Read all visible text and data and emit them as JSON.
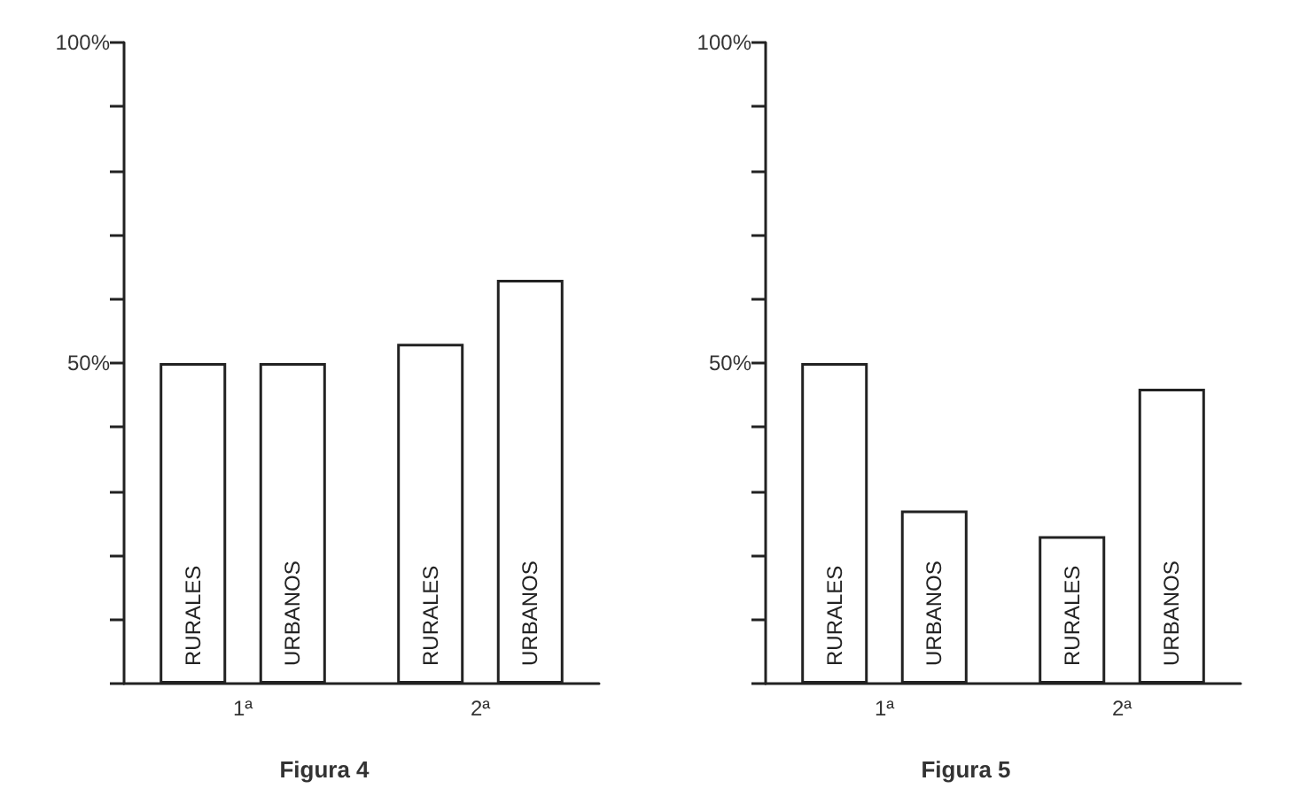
{
  "chart_data": [
    {
      "type": "bar",
      "title": "Figura 4",
      "categories": [
        "1ª",
        "2ª"
      ],
      "series": [
        {
          "name": "RURALES",
          "color": "#ffffff",
          "values": [
            50,
            53
          ]
        },
        {
          "name": "URBANOS",
          "color": "#ffffff",
          "values": [
            50,
            63
          ]
        }
      ],
      "ylim": [
        0,
        100
      ],
      "yticks": [
        {
          "value": 0,
          "label": null
        },
        {
          "value": 10,
          "label": null
        },
        {
          "value": 20,
          "label": null
        },
        {
          "value": 30,
          "label": null
        },
        {
          "value": 40,
          "label": null
        },
        {
          "value": 50,
          "label": "50%"
        },
        {
          "value": 60,
          "label": null
        },
        {
          "value": 70,
          "label": null
        },
        {
          "value": 80,
          "label": null
        },
        {
          "value": 90,
          "label": null
        },
        {
          "value": 100,
          "label": "100%"
        }
      ],
      "grid": false,
      "legend": false
    },
    {
      "type": "bar",
      "title": "Figura 5",
      "categories": [
        "1ª",
        "2ª"
      ],
      "series": [
        {
          "name": "RURALES",
          "color": "#ffffff",
          "values": [
            50,
            23
          ]
        },
        {
          "name": "URBANOS",
          "color": "#ffffff",
          "values": [
            27,
            46
          ]
        }
      ],
      "ylim": [
        0,
        100
      ],
      "yticks": [
        {
          "value": 0,
          "label": null
        },
        {
          "value": 10,
          "label": null
        },
        {
          "value": 20,
          "label": null
        },
        {
          "value": 30,
          "label": null
        },
        {
          "value": 40,
          "label": null
        },
        {
          "value": 50,
          "label": "50%"
        },
        {
          "value": 60,
          "label": null
        },
        {
          "value": 70,
          "label": null
        },
        {
          "value": 80,
          "label": null
        },
        {
          "value": 90,
          "label": null
        },
        {
          "value": 100,
          "label": "100%"
        }
      ],
      "grid": false,
      "legend": false
    }
  ]
}
